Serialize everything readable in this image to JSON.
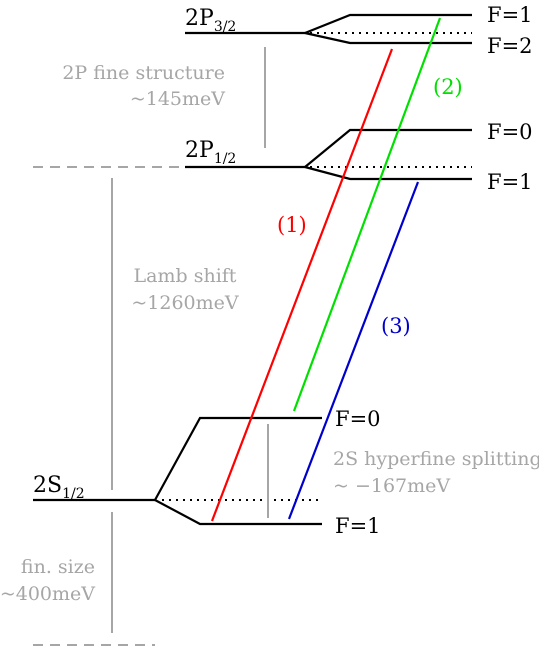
{
  "states": {
    "p32": {
      "main": "2P",
      "sub": "3/2"
    },
    "p12": {
      "main": "2P",
      "sub": "1/2"
    },
    "s12": {
      "main": "2S",
      "sub": "1/2"
    }
  },
  "hyperfine_labels": {
    "p32_upper": "F=1",
    "p32_lower": "F=2",
    "p12_upper": "F=0",
    "p12_lower": "F=1",
    "s12_upper": "F=0",
    "s12_lower": "F=1"
  },
  "notes": {
    "fine_structure": {
      "line1": "2P fine structure",
      "line2": "~145meV"
    },
    "lamb_shift": {
      "line1": "Lamb shift",
      "line2": "~1260meV"
    },
    "hyperfine_2s": {
      "line1": "2S hyperfine splitting",
      "line2": "~ −167meV"
    },
    "fin_size": {
      "line1": "fin. size",
      "line2": "~400meV"
    }
  },
  "transitions": [
    {
      "label": "(1)",
      "color": "#ff0000"
    },
    {
      "label": "(2)",
      "color": "#00e000"
    },
    {
      "label": "(3)",
      "color": "#0000cc"
    }
  ],
  "colors": {
    "levels": "#000000",
    "annotations": "#a6a6a6"
  }
}
